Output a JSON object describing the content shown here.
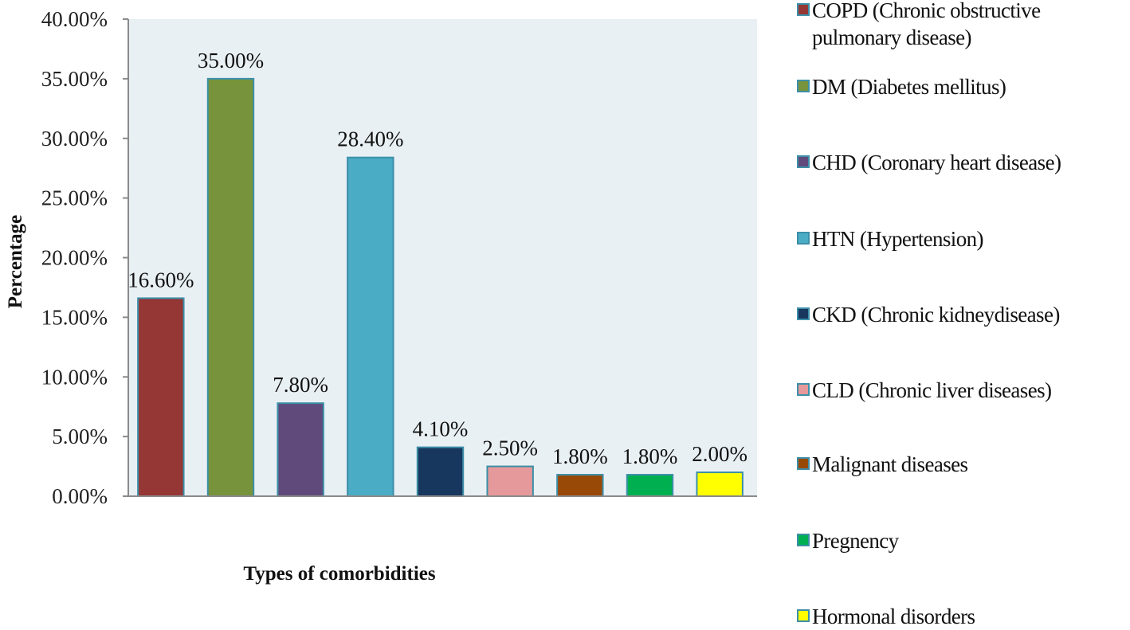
{
  "chart_data": {
    "type": "bar",
    "title": "",
    "xlabel": "Types of comorbidities",
    "ylabel": "Percentage",
    "ylim": [
      0,
      40
    ],
    "yticks": [
      0,
      5,
      10,
      15,
      20,
      25,
      30,
      35,
      40
    ],
    "ytick_labels": [
      "0.00%",
      "5.00%",
      "10.00%",
      "15.00%",
      "20.00%",
      "25.00%",
      "30.00%",
      "35.00%",
      "40.00%"
    ],
    "grid": false,
    "legend_position": "right",
    "plot_background": "#e9f0f4",
    "bar_border_color": "#3c8fa8",
    "categories": [
      "COPD (Chronic obstructive pulmonary disease)",
      "DM (Diabetes mellitus)",
      "CHD (Coronary heart disease)",
      "HTN (Hypertension)",
      "CKD (Chronic kidney disease)",
      "CLD (Chronic liver diseases)",
      "Malignant diseases",
      "Pregnency",
      "Hormonal disorders"
    ],
    "values": [
      16.6,
      35.0,
      7.8,
      28.4,
      4.1,
      2.5,
      1.8,
      1.8,
      2.0
    ],
    "data_labels": [
      "16.60%",
      "35.00%",
      "7.80%",
      "28.40%",
      "4.10%",
      "2.50%",
      "1.80%",
      "1.80%",
      "2.00%"
    ],
    "colors": [
      "#953735",
      "#77933c",
      "#604a7b",
      "#4bacc6",
      "#17375e",
      "#e6999a",
      "#984807",
      "#00b050",
      "#ffff00"
    ],
    "legend": [
      {
        "label": "COPD (Chronic obstructive pulmonary disease)",
        "color": "#953735"
      },
      {
        "label": "DM (Diabetes mellitus)",
        "color": "#77933c"
      },
      {
        "label": "CHD (Coronary heart disease)",
        "color": "#604a7b"
      },
      {
        "label": "HTN (Hypertension)",
        "color": "#4bacc6"
      },
      {
        "label": "CKD (Chronic kidneydisease)",
        "color": "#17375e"
      },
      {
        "label": "CLD (Chronic liver diseases)",
        "color": "#e6999a"
      },
      {
        "label": "Malignant diseases",
        "color": "#984807"
      },
      {
        "label": "Pregnency",
        "color": "#00b050"
      },
      {
        "label": "Hormonal disorders",
        "color": "#ffff00"
      }
    ]
  }
}
